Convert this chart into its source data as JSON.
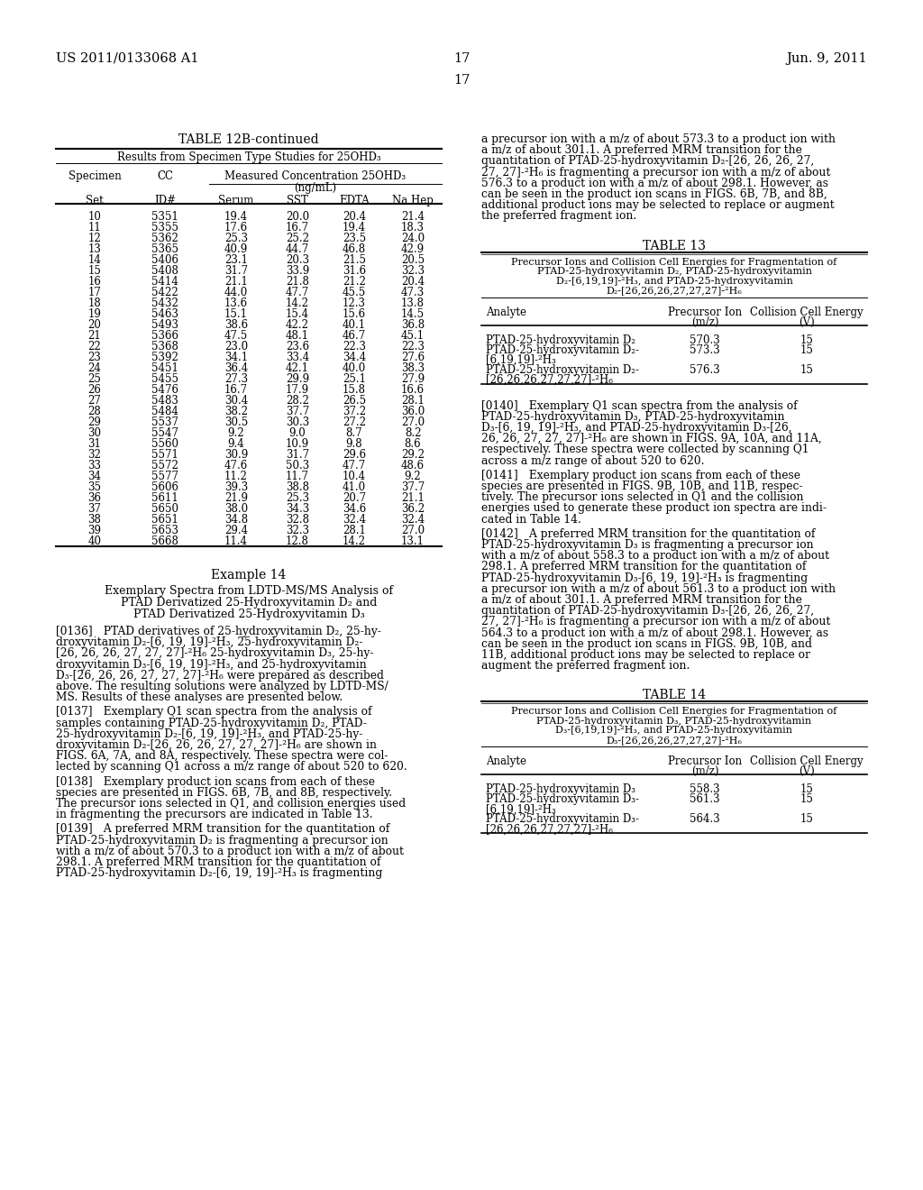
{
  "page_number": "17",
  "patent_number": "US 2011/0133068 A1",
  "patent_date": "Jun. 9, 2011",
  "background_color": "#ffffff",
  "table12b_title": "TABLE 12B-continued",
  "table12b_subtitle": "Results from Specimen Type Studies for 25OHD₃",
  "table12b_data": [
    [
      10,
      5351,
      19.4,
      20.0,
      20.4,
      21.4
    ],
    [
      11,
      5355,
      17.6,
      16.7,
      19.4,
      18.3
    ],
    [
      12,
      5362,
      25.3,
      25.2,
      23.5,
      24.0
    ],
    [
      13,
      5365,
      40.9,
      44.7,
      46.8,
      42.9
    ],
    [
      14,
      5406,
      23.1,
      20.3,
      21.5,
      20.5
    ],
    [
      15,
      5408,
      31.7,
      33.9,
      31.6,
      32.3
    ],
    [
      16,
      5414,
      21.1,
      21.8,
      21.2,
      20.4
    ],
    [
      17,
      5422,
      44.0,
      47.7,
      45.5,
      47.3
    ],
    [
      18,
      5432,
      13.6,
      14.2,
      12.3,
      13.8
    ],
    [
      19,
      5463,
      15.1,
      15.4,
      15.6,
      14.5
    ],
    [
      20,
      5493,
      38.6,
      42.2,
      40.1,
      36.8
    ],
    [
      21,
      5366,
      47.5,
      48.1,
      46.7,
      45.1
    ],
    [
      22,
      5368,
      23.0,
      23.6,
      22.3,
      22.3
    ],
    [
      23,
      5392,
      34.1,
      33.4,
      34.4,
      27.6
    ],
    [
      24,
      5451,
      36.4,
      42.1,
      40.0,
      38.3
    ],
    [
      25,
      5455,
      27.3,
      29.9,
      25.1,
      27.9
    ],
    [
      26,
      5476,
      16.7,
      17.9,
      15.8,
      16.6
    ],
    [
      27,
      5483,
      30.4,
      28.2,
      26.5,
      28.1
    ],
    [
      28,
      5484,
      38.2,
      37.7,
      37.2,
      36.0
    ],
    [
      29,
      5537,
      30.5,
      30.3,
      27.2,
      27.0
    ],
    [
      30,
      5547,
      9.2,
      9.0,
      8.7,
      8.2
    ],
    [
      31,
      5560,
      9.4,
      10.9,
      9.8,
      8.6
    ],
    [
      32,
      5571,
      30.9,
      31.7,
      29.6,
      29.2
    ],
    [
      33,
      5572,
      47.6,
      50.3,
      47.7,
      48.6
    ],
    [
      34,
      5577,
      11.2,
      11.7,
      10.4,
      9.2
    ],
    [
      35,
      5606,
      39.3,
      38.8,
      41.0,
      37.7
    ],
    [
      36,
      5611,
      21.9,
      25.3,
      20.7,
      21.1
    ],
    [
      37,
      5650,
      38.0,
      34.3,
      34.6,
      36.2
    ],
    [
      38,
      5651,
      34.8,
      32.8,
      32.4,
      32.4
    ],
    [
      39,
      5653,
      29.4,
      32.3,
      28.1,
      27.0
    ],
    [
      40,
      5668,
      11.4,
      12.8,
      14.2,
      13.1
    ]
  ],
  "example14_title": "Example 14",
  "example14_subtitle_lines": [
    "Exemplary Spectra from LDTD-MS/MS Analysis of",
    "PTAD Derivatized 25-Hydroxyvitamin D₂ and",
    "PTAD Derivatized 25-Hydroxyvitamin D₃"
  ],
  "para0136_lines": [
    "[0136] PTAD derivatives of 25-hydroxyvitamin D₂, 25-hy-",
    "droxyvitamin D₂-[6, 19, 19]-²H₃, 25-hydroxyvitamin D₂-",
    "[26, 26, 26, 27, 27, 27]-²H₆ 25-hydroxyvitamin D₃, 25-hy-",
    "droxyvitamin D₃-[6, 19, 19]-²H₃, and 25-hydroxyvitamin",
    "D₃-[26, 26, 26, 27, 27, 27]-²H₆ were prepared as described",
    "above. The resulting solutions were analyzed by LDTD-MS/",
    "MS. Results of these analyses are presented below."
  ],
  "para0137_lines": [
    "[0137] Exemplary Q1 scan spectra from the analysis of",
    "samples containing PTAD-25-hydroxyvitamin D₂, PTAD-",
    "25-hydroxyvitamin D₂-[6, 19, 19]-²H₃, and PTAD-25-hy-",
    "droxyvitamin D₂-[26, 26, 26, 27, 27, 27]-²H₆ are shown in",
    "FIGS. 6A, 7A, and 8A, respectively. These spectra were col-",
    "lected by scanning Q1 across a m/z range of about 520 to 620."
  ],
  "para0138_lines": [
    "[0138] Exemplary product ion scans from each of these",
    "species are presented in FIGS. 6B, 7B, and 8B, respectively.",
    "The precursor ions selected in Q1, and collision energies used",
    "in fragmenting the precursors are indicated in Table 13."
  ],
  "para0139_lines": [
    "[0139] A preferred MRM transition for the quantitation of",
    "PTAD-25-hydroxyvitamin D₂ is fragmenting a precursor ion",
    "with a m/z of about 570.3 to a product ion with a m/z of about",
    "298.1. A preferred MRM transition for the quantitation of",
    "PTAD-25-hydroxyvitamin D₂-[6, 19, 19]-²H₃ is fragmenting"
  ],
  "right_col_para1_lines": [
    "a precursor ion with a m/z of about 573.3 to a product ion with",
    "a m/z of about 301.1. A preferred MRM transition for the",
    "quantitation of PTAD-25-hydroxyvitamin D₂-[26, 26, 26, 27,",
    "27, 27]-²H₆ is fragmenting a precursor ion with a m/z of about",
    "576.3 to a product ion with a m/z of about 298.1. However, as",
    "can be seen in the product ion scans in FIGS. 6B, 7B, and 8B,",
    "additional product ions may be selected to replace or augment",
    "the preferred fragment ion."
  ],
  "table13_title": "TABLE 13",
  "table13_subtitle_lines": [
    "Precursor Ions and Collision Cell Energies for Fragmentation of",
    "PTAD-25-hydroxyvitamin D₂, PTAD-25-hydroxyvitamin",
    "D₂-[6,19,19]-²H₃, and PTAD-25-hydroxyvitamin",
    "D₂-[26,26,26,27,27,27]-²H₆"
  ],
  "table13_data": [
    [
      "PTAD-25-hydroxyvitamin D₂",
      "",
      "570.3",
      "15"
    ],
    [
      "PTAD-25-hydroxyvitamin D₂-",
      "[6,19,19]-²H₃",
      "573.3",
      "15"
    ],
    [
      "PTAD-25-hydroxyvitamin D₂-",
      "[26,26,26,27,27,27]-²H₆",
      "576.3",
      "15"
    ]
  ],
  "para0140_lines": [
    "[0140] Exemplary Q1 scan spectra from the analysis of",
    "PTAD-25-hydroxyvitamin D₃, PTAD-25-hydroxyvitamin",
    "D₃-[6, 19, 19]-²H₃, and PTAD-25-hydroxyvitamin D₃-[26,",
    "26, 26, 27, 27, 27]-²H₆ are shown in FIGS. 9A, 10A, and 11A,",
    "respectively. These spectra were collected by scanning Q1",
    "across a m/z range of about 520 to 620."
  ],
  "para0141_lines": [
    "[0141] Exemplary product ion scans from each of these",
    "species are presented in FIGS. 9B, 10B, and 11B, respec-",
    "tively. The precursor ions selected in Q1 and the collision",
    "energies used to generate these product ion spectra are indi-",
    "cated in Table 14."
  ],
  "para0142_lines": [
    "[0142] A preferred MRM transition for the quantitation of",
    "PTAD-25-hydroxyvitamin D₃ is fragmenting a precursor ion",
    "with a m/z of about 558.3 to a product ion with a m/z of about",
    "298.1. A preferred MRM transition for the quantitation of",
    "PTAD-25-hydroxyvitamin D₃-[6, 19, 19]-²H₃ is fragmenting",
    "a precursor ion with a m/z of about 561.3 to a product ion with",
    "a m/z of about 301.1. A preferred MRM transition for the",
    "quantitation of PTAD-25-hydroxyvitamin D₃-[26, 26, 26, 27,",
    "27, 27]-²H₆ is fragmenting a precursor ion with a m/z of about",
    "564.3 to a product ion with a m/z of about 298.1. However, as",
    "can be seen in the product ion scans in FIGS. 9B, 10B, and",
    "11B, additional product ions may be selected to replace or",
    "augment the preferred fragment ion."
  ],
  "table14_title": "TABLE 14",
  "table14_subtitle_lines": [
    "Precursor Ions and Collision Cell Energies for Fragmentation of",
    "PTAD-25-hydroxyvitamin D₃, PTAD-25-hydroxyvitamin",
    "D₃-[6,19,19]-²H₃, and PTAD-25-hydroxyvitamin",
    "D₃-[26,26,26,27,27,27]-²H₆"
  ],
  "table14_data": [
    [
      "PTAD-25-hydroxyvitamin D₃",
      "",
      "558.3",
      "15"
    ],
    [
      "PTAD-25-hydroxyvitamin D₃-",
      "[6,19,19]-²H₃",
      "561.3",
      "15"
    ],
    [
      "PTAD-25-hydroxyvitamin D₃-",
      "[26,26,26,27,27,27]-²H₆",
      "564.3",
      "15"
    ]
  ]
}
